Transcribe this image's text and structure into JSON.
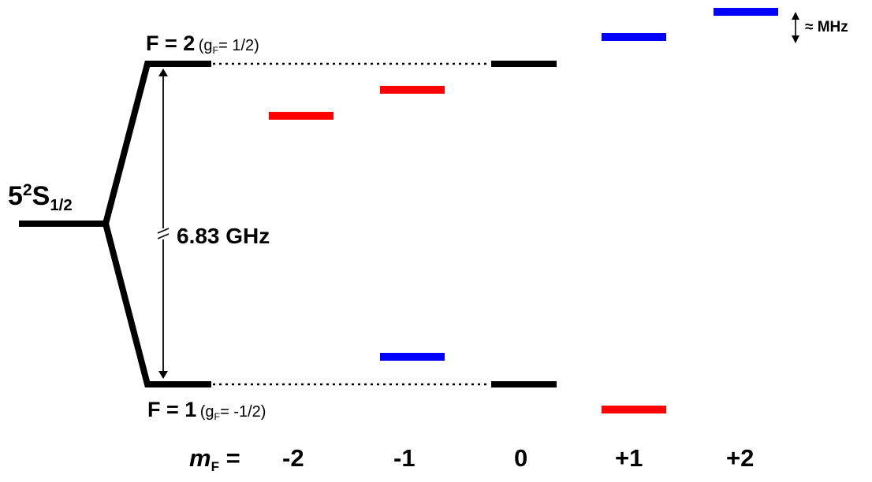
{
  "ground_state": {
    "principal": "5",
    "multiplicity": "2",
    "letter": "S",
    "j": "1/2"
  },
  "upper_level": {
    "label": "F = 2",
    "g_open": "(g",
    "g_sub": "F",
    "g_value": "= 1/2)"
  },
  "lower_level": {
    "label": "F = 1",
    "g_open": "(g",
    "g_sub": "F",
    "g_value": "= -1/2)"
  },
  "hyperfine_splitting": "6.83 GHz",
  "zeeman_scale": "≈ MHz",
  "mf_axis": {
    "symbol": "m",
    "symbol_sub": "F",
    "equals": "=",
    "values": [
      "-2",
      "-1",
      "0",
      "+1",
      "+2"
    ]
  },
  "colors": {
    "unshifted": "#000000",
    "shift_down": "#ff0000",
    "shift_up": "#0000ff"
  },
  "icons": {
    "splitting_arrow": "double-arrow-icon",
    "axis_break": "axis-break-icon",
    "scale_arrow": "double-arrow-small-icon"
  }
}
